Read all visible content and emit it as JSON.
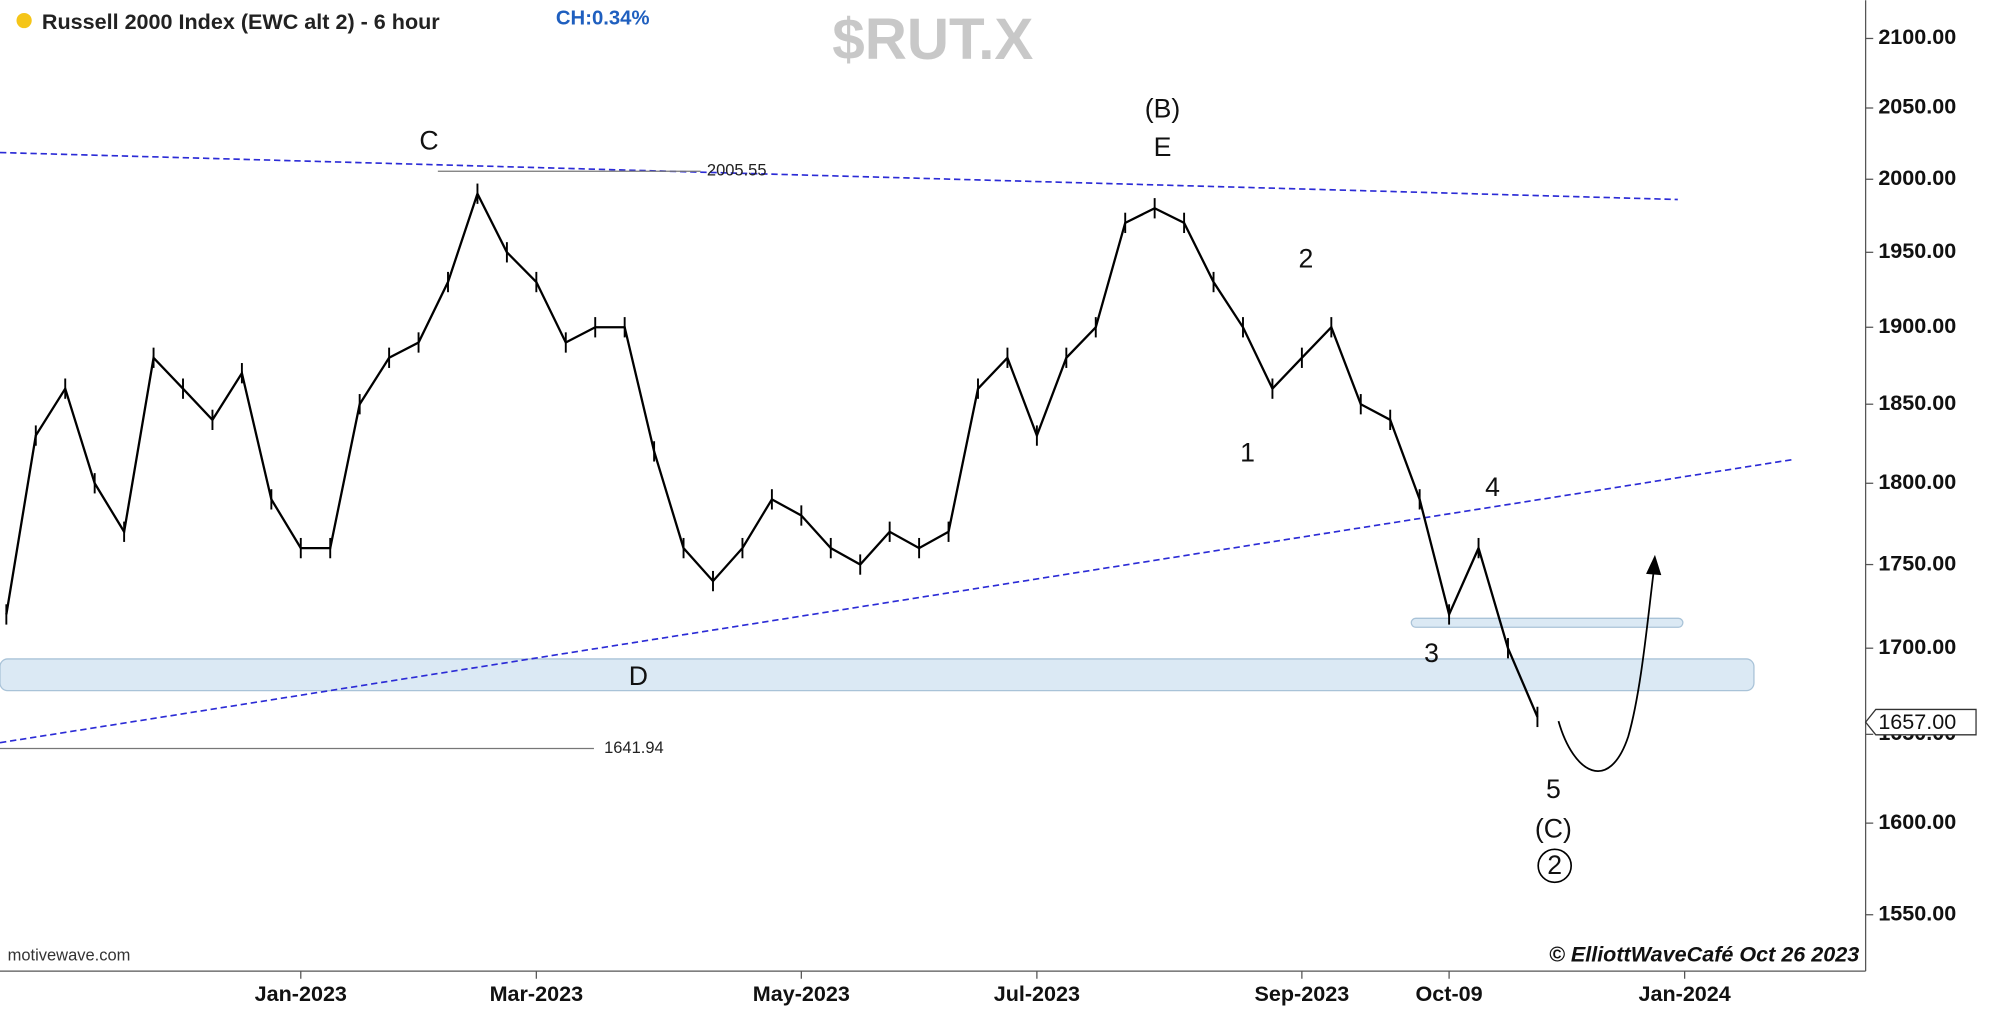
{
  "chart_data": {
    "type": "line",
    "title": "Russell 2000 Index (EWC alt 2) - 6 hour",
    "change": "CH:0.34%",
    "watermark": "$RUT.X",
    "source": "motivewave.com",
    "copyright": "© ElliottWaveCafé Oct 26 2023",
    "color": "#000000",
    "log_scale": true,
    "categories": [
      null,
      null,
      null,
      null,
      null,
      null,
      null,
      null,
      null,
      null,
      "Jan-2023",
      null,
      null,
      null,
      null,
      null,
      null,
      null,
      "Mar-2023",
      null,
      null,
      null,
      null,
      null,
      null,
      null,
      null,
      "May-2023",
      null,
      null,
      null,
      null,
      null,
      null,
      null,
      "Jul-2023",
      null,
      null,
      null,
      null,
      null,
      null,
      null,
      null,
      "Sep-2023",
      null,
      null,
      null,
      null,
      "Oct-09",
      null,
      null,
      null,
      null,
      null,
      null,
      null,
      "Jan-2024"
    ],
    "values": [
      1720,
      1830,
      1860,
      1800,
      1770,
      1880,
      1860,
      1840,
      1870,
      1790,
      1760,
      1760,
      1850,
      1880,
      1890,
      1930,
      1990,
      1950,
      1930,
      1890,
      1900,
      1900,
      1820,
      1760,
      1740,
      1760,
      1790,
      1780,
      1760,
      1750,
      1770,
      1760,
      1770,
      1860,
      1880,
      1830,
      1880,
      1900,
      1970,
      1980,
      1970,
      1930,
      1900,
      1860,
      1880,
      1900,
      1850,
      1840,
      1790,
      1720,
      1760,
      1700,
      1660,
      null,
      null,
      null,
      null,
      null
    ],
    "ylim": [
      1520,
      2128
    ],
    "yticks": [
      {
        "value": 1550,
        "label": "1550.00"
      },
      {
        "value": 1600,
        "label": "1600.00"
      },
      {
        "value": 1650,
        "label": "1650.00"
      },
      {
        "value": 1700,
        "label": "1700.00"
      },
      {
        "value": 1750,
        "label": "1750.00"
      },
      {
        "value": 1800,
        "label": "1800.00"
      },
      {
        "value": 1850,
        "label": "1850.00"
      },
      {
        "value": 1900,
        "label": "1900.00"
      },
      {
        "value": 1950,
        "label": "1950.00"
      },
      {
        "value": 2000,
        "label": "2000.00"
      },
      {
        "value": 2050,
        "label": "2050.00"
      },
      {
        "value": 2100,
        "label": "2100.00"
      }
    ],
    "levels": [
      {
        "value": 2005.55,
        "label": "2005.55"
      },
      {
        "value": 1641.94,
        "label": "1641.94"
      }
    ],
    "last_price": {
      "value": 1657,
      "label": "1657.00"
    },
    "annotations": [
      "C",
      "(B)",
      "E",
      "2",
      "1",
      "4",
      "3",
      "D",
      "5",
      "(C)",
      "2"
    ]
  }
}
